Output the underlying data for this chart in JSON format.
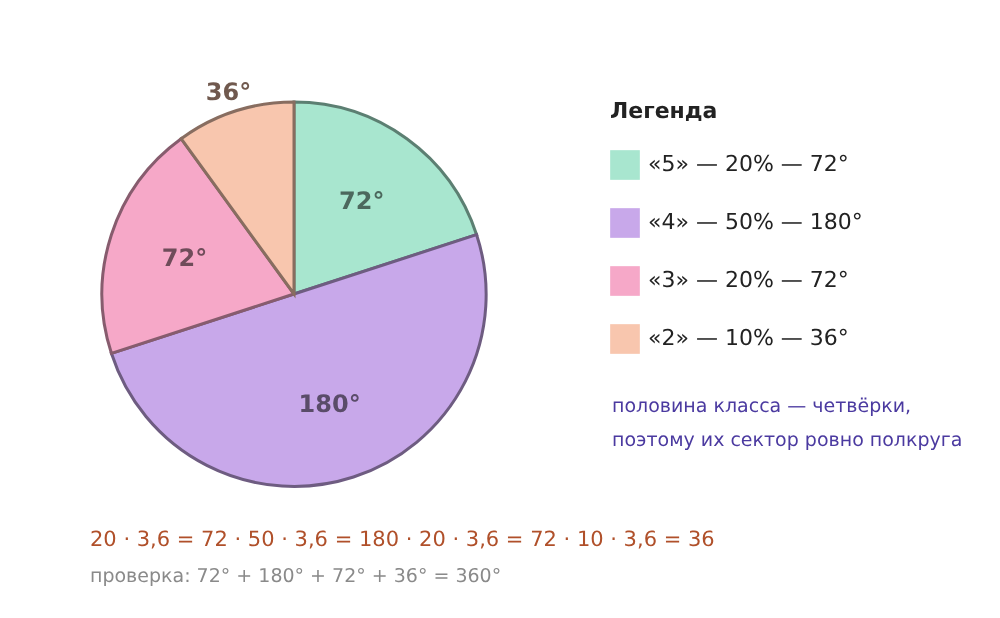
{
  "chart_data": {
    "type": "pie",
    "categories": [
      "«5» — 20% — 72°",
      "«4» — 50% — 180°",
      "«3» — 20% — 72°",
      "«2» — 10% — 36°"
    ],
    "values": [
      72,
      180,
      72,
      36
    ],
    "value_labels": [
      "72°",
      "180°",
      "72°",
      "36°"
    ],
    "colors": [
      "#a8e6cf",
      "#c8a8ea",
      "#f6a8c8",
      "#f8c6ae"
    ],
    "legend_title": "Легенда",
    "legend": "right",
    "annotations": [
      "половина класса — четвёрки,\nпоэтому их сектор ровно полкруга",
      "20 · 3,6 = 72 · 50 · 3,6 = 180 · 20 · 3,6 = 72 · 10 · 3,6 = 36",
      "проверка: 72° + 180° + 72° + 36° = 360°"
    ]
  }
}
